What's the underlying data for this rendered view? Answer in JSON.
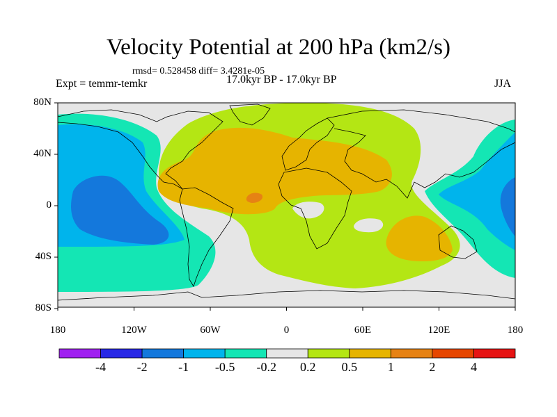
{
  "title": "Velocity Potential at 200 hPa (km2/s)",
  "stats": "rmsd= 0.528458  diff= 3.4281e-05",
  "experiment": "Expt = temmr-temkr",
  "period": "17.0kyr BP - 17.0kyr BP",
  "season": "JJA",
  "axes": {
    "lat_ticks": [
      {
        "label": "80N",
        "lat": 80
      },
      {
        "label": "40N",
        "lat": 40
      },
      {
        "label": "0",
        "lat": 0
      },
      {
        "label": "40S",
        "lat": -40
      },
      {
        "label": "80S",
        "lat": -80
      }
    ],
    "lon_ticks": [
      {
        "label": "180",
        "lon": -180
      },
      {
        "label": "120W",
        "lon": -120
      },
      {
        "label": "60W",
        "lon": -60
      },
      {
        "label": "0",
        "lon": 0
      },
      {
        "label": "60E",
        "lon": 60
      },
      {
        "label": "120E",
        "lon": 120
      },
      {
        "label": "180",
        "lon": 180
      }
    ]
  },
  "colorbar": {
    "colors": [
      "#a020f0",
      "#2828e6",
      "#1478dc",
      "#00b4ec",
      "#14e6b4",
      "#e6e6e6",
      "#b4e614",
      "#e6b400",
      "#e68214",
      "#e64600",
      "#e61414"
    ],
    "labels": [
      "-4",
      "-2",
      "-1",
      "-0.5",
      "-0.2",
      "0.2",
      "0.5",
      "1",
      "2",
      "4"
    ]
  },
  "map_colors": {
    "background": "#e6e6e6",
    "low": "#14e6b4",
    "lower": "#00b4ec",
    "lowest": "#1478dc",
    "high": "#b4e614",
    "higher": "#e6b400",
    "highest": "#e68214",
    "coast": "#000000"
  }
}
